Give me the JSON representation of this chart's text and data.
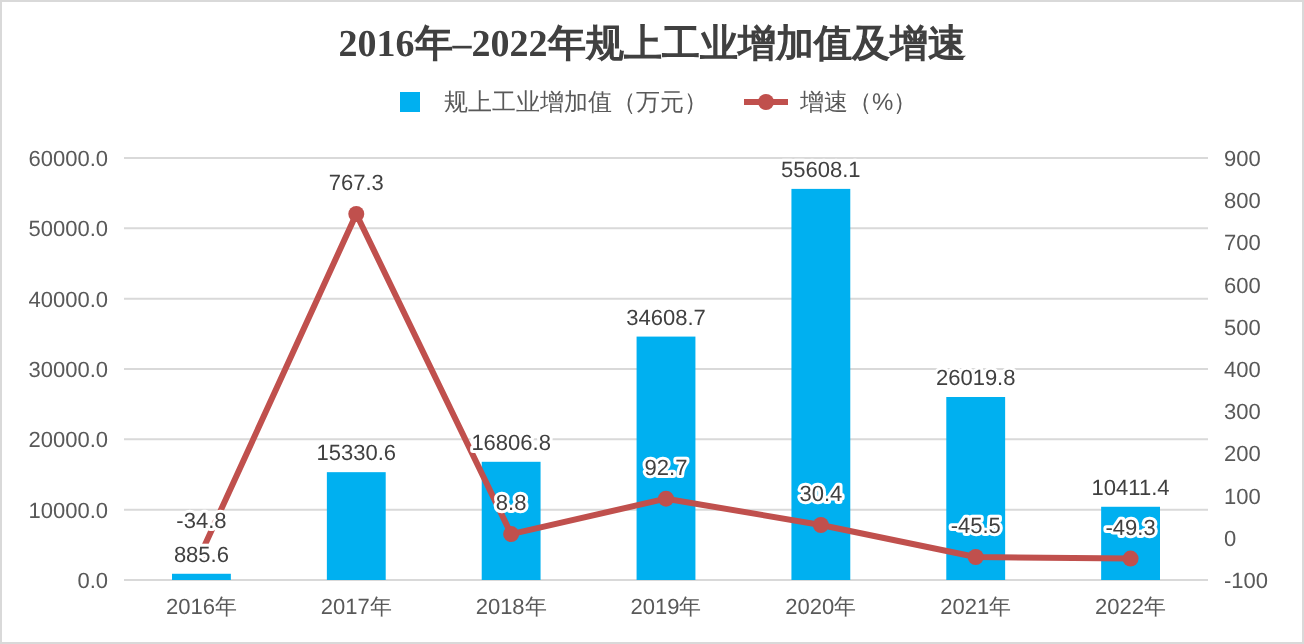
{
  "chart_data": {
    "type": "bar",
    "title": "2016年–2022年规上工业增加值及增速",
    "categories": [
      "2016年",
      "2017年",
      "2018年",
      "2019年",
      "2020年",
      "2021年",
      "2022年"
    ],
    "series": [
      {
        "name": "规上工业增加值（万元）",
        "color": "#00b0f0",
        "values": [
          885.6,
          15330.6,
          16806.8,
          34608.7,
          55608.1,
          26019.8,
          10411.4
        ]
      },
      {
        "name": "增速（%）",
        "type": "line",
        "axis": "y2",
        "color": "#c0504d",
        "marker": "circle",
        "values": [
          -34.8,
          767.3,
          8.8,
          92.7,
          30.4,
          -45.5,
          -49.3
        ]
      }
    ],
    "ylim": [
      0,
      60000
    ],
    "yticks": [
      {
        "value": 0,
        "label": "0.0"
      },
      {
        "value": 10000,
        "label": "10000.0"
      },
      {
        "value": 20000,
        "label": "20000.0"
      },
      {
        "value": 30000,
        "label": "30000.0"
      },
      {
        "value": 40000,
        "label": "40000.0"
      },
      {
        "value": 50000,
        "label": "50000.0"
      },
      {
        "value": 60000,
        "label": "60000.0"
      }
    ],
    "y2lim": [
      -100,
      900
    ],
    "y2ticks": [
      -100,
      0,
      100,
      200,
      300,
      400,
      500,
      600,
      700,
      800,
      900
    ],
    "grid": "y",
    "legend": "top",
    "data_labels": true
  }
}
